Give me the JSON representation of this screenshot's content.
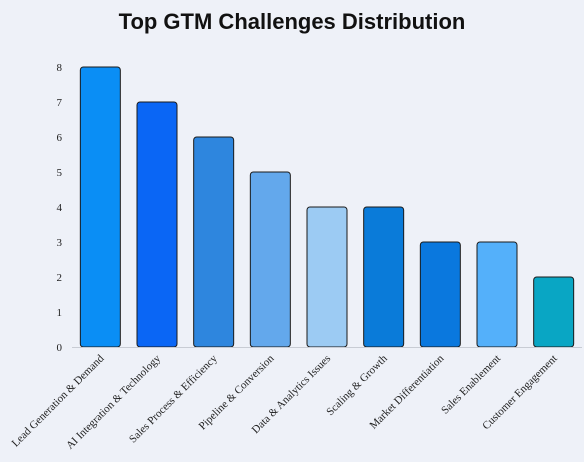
{
  "chart_data": {
    "type": "bar",
    "title": "Top GTM Challenges Distribution",
    "xlabel": "",
    "ylabel": "",
    "ylim": [
      0,
      8
    ],
    "yticks": [
      0,
      1,
      2,
      3,
      4,
      5,
      6,
      7,
      8
    ],
    "grid": false,
    "categories": [
      "Lead Generation & Demand",
      "AI Integration & Technology",
      "Sales Process & Efficiency",
      "Pipeline & Conversion",
      "Data & Analytics Issues",
      "Scaling & Growth",
      "Market Differentiation",
      "Sales Enablement",
      "Customer Engagement"
    ],
    "values": [
      8,
      7,
      6,
      5,
      4,
      4,
      3,
      3,
      2
    ],
    "colors": [
      "#0a8ef5",
      "#0a66f5",
      "#2e86de",
      "#63a8ec",
      "#9ccbf3",
      "#0a7bd9",
      "#0a78de",
      "#54b0fa",
      "#09a6c4"
    ]
  }
}
